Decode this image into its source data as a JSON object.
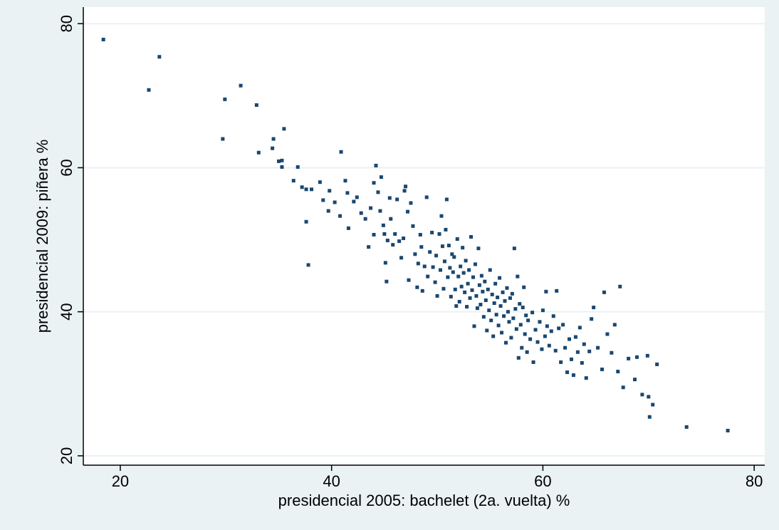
{
  "chart_data": {
    "type": "scatter",
    "title": "",
    "xlabel": "presidencial 2005: bachelet (2a. vuelta) %",
    "ylabel": "presidencial 2009: piñera %",
    "xlim": [
      16.5,
      81
    ],
    "ylim": [
      18.7,
      82.3
    ],
    "xticks": [
      20,
      40,
      60,
      80
    ],
    "yticks": [
      20,
      40,
      60,
      80
    ],
    "grid": "horizontal",
    "colors": {
      "background": "#eaf2f3",
      "plot_area": "#ffffff",
      "marker": "#1a476f",
      "grid": "#eaf2f3"
    },
    "series": [
      {
        "points": [
          [
            18.4,
            77.8
          ],
          [
            22.7,
            70.8
          ],
          [
            23.7,
            75.4
          ],
          [
            29.7,
            64.0
          ],
          [
            29.9,
            69.5
          ],
          [
            31.4,
            71.4
          ],
          [
            32.9,
            68.7
          ],
          [
            33.1,
            62.1
          ],
          [
            34.4,
            62.7
          ],
          [
            34.5,
            64.0
          ],
          [
            35.0,
            60.9
          ],
          [
            35.3,
            61.0
          ],
          [
            35.3,
            60.1
          ],
          [
            35.5,
            65.4
          ],
          [
            36.4,
            58.2
          ],
          [
            36.8,
            60.1
          ],
          [
            37.2,
            57.3
          ],
          [
            37.6,
            57.0
          ],
          [
            37.6,
            52.5
          ],
          [
            37.8,
            46.5
          ],
          [
            38.1,
            57.0
          ],
          [
            38.9,
            58.0
          ],
          [
            39.2,
            55.5
          ],
          [
            39.7,
            54.0
          ],
          [
            39.8,
            56.8
          ],
          [
            40.3,
            55.2
          ],
          [
            40.8,
            53.3
          ],
          [
            40.9,
            62.2
          ],
          [
            41.3,
            58.2
          ],
          [
            41.5,
            56.5
          ],
          [
            41.6,
            51.6
          ],
          [
            42.1,
            55.3
          ],
          [
            42.4,
            55.9
          ],
          [
            42.8,
            53.7
          ],
          [
            43.2,
            52.9
          ],
          [
            43.5,
            49.0
          ],
          [
            43.7,
            54.4
          ],
          [
            44.0,
            50.7
          ],
          [
            44.0,
            57.9
          ],
          [
            44.2,
            60.3
          ],
          [
            44.4,
            56.6
          ],
          [
            44.6,
            54.0
          ],
          [
            44.7,
            58.7
          ],
          [
            44.9,
            52.0
          ],
          [
            45.0,
            50.8
          ],
          [
            45.1,
            46.8
          ],
          [
            45.2,
            44.2
          ],
          [
            45.3,
            49.9
          ],
          [
            45.5,
            55.8
          ],
          [
            45.6,
            52.9
          ],
          [
            45.8,
            49.3
          ],
          [
            46.0,
            50.8
          ],
          [
            46.2,
            55.6
          ],
          [
            46.4,
            49.8
          ],
          [
            46.6,
            47.5
          ],
          [
            46.8,
            50.2
          ],
          [
            46.9,
            56.8
          ],
          [
            47.0,
            57.4
          ],
          [
            47.2,
            53.9
          ],
          [
            47.3,
            44.4
          ],
          [
            47.5,
            55.1
          ],
          [
            47.7,
            51.9
          ],
          [
            47.9,
            48.0
          ],
          [
            48.1,
            43.4
          ],
          [
            48.2,
            46.7
          ],
          [
            48.4,
            50.7
          ],
          [
            48.5,
            49.0
          ],
          [
            48.6,
            42.9
          ],
          [
            48.8,
            46.3
          ],
          [
            49.0,
            55.9
          ],
          [
            49.1,
            44.9
          ],
          [
            49.3,
            48.3
          ],
          [
            49.5,
            51.0
          ],
          [
            49.6,
            46.2
          ],
          [
            49.8,
            44.1
          ],
          [
            49.9,
            47.8
          ],
          [
            50.0,
            42.2
          ],
          [
            50.2,
            50.8
          ],
          [
            50.3,
            45.8
          ],
          [
            50.4,
            53.3
          ],
          [
            50.5,
            49.1
          ],
          [
            50.6,
            43.2
          ],
          [
            50.7,
            47.0
          ],
          [
            50.8,
            51.4
          ],
          [
            50.9,
            55.6
          ],
          [
            51.0,
            44.8
          ],
          [
            51.1,
            49.2
          ],
          [
            51.2,
            46.1
          ],
          [
            51.3,
            42.1
          ],
          [
            51.4,
            48.0
          ],
          [
            51.5,
            45.5
          ],
          [
            51.6,
            47.6
          ],
          [
            51.7,
            43.1
          ],
          [
            51.8,
            40.8
          ],
          [
            51.9,
            50.1
          ],
          [
            52.0,
            44.9
          ],
          [
            52.1,
            41.4
          ],
          [
            52.2,
            46.3
          ],
          [
            52.3,
            43.5
          ],
          [
            52.4,
            48.9
          ],
          [
            52.5,
            45.4
          ],
          [
            52.6,
            42.7
          ],
          [
            52.7,
            47.1
          ],
          [
            52.8,
            40.7
          ],
          [
            52.9,
            43.9
          ],
          [
            53.0,
            45.8
          ],
          [
            53.1,
            41.9
          ],
          [
            53.2,
            50.4
          ],
          [
            53.3,
            43.0
          ],
          [
            53.4,
            44.8
          ],
          [
            53.5,
            38.0
          ],
          [
            53.6,
            46.6
          ],
          [
            53.7,
            42.2
          ],
          [
            53.8,
            40.5
          ],
          [
            53.9,
            48.8
          ],
          [
            54.0,
            43.7
          ],
          [
            54.1,
            41.0
          ],
          [
            54.2,
            45.0
          ],
          [
            54.3,
            42.8
          ],
          [
            54.4,
            39.3
          ],
          [
            54.5,
            44.2
          ],
          [
            54.6,
            41.6
          ],
          [
            54.7,
            37.4
          ],
          [
            54.8,
            43.1
          ],
          [
            54.9,
            40.2
          ],
          [
            55.0,
            45.8
          ],
          [
            55.1,
            38.8
          ],
          [
            55.2,
            42.4
          ],
          [
            55.3,
            36.6
          ],
          [
            55.4,
            41.2
          ],
          [
            55.5,
            43.9
          ],
          [
            55.6,
            39.6
          ],
          [
            55.7,
            42.0
          ],
          [
            55.8,
            38.1
          ],
          [
            55.9,
            44.7
          ],
          [
            56.0,
            40.8
          ],
          [
            56.1,
            37.1
          ],
          [
            56.2,
            42.7
          ],
          [
            56.3,
            39.4
          ],
          [
            56.4,
            41.5
          ],
          [
            56.5,
            35.7
          ],
          [
            56.6,
            43.3
          ],
          [
            56.7,
            40.0
          ],
          [
            56.8,
            38.6
          ],
          [
            56.9,
            41.9
          ],
          [
            57.0,
            36.4
          ],
          [
            57.1,
            42.5
          ],
          [
            57.2,
            39.1
          ],
          [
            57.3,
            48.8
          ],
          [
            57.4,
            40.4
          ],
          [
            57.5,
            37.6
          ],
          [
            57.6,
            44.9
          ],
          [
            57.7,
            33.6
          ],
          [
            57.8,
            41.1
          ],
          [
            57.9,
            38.2
          ],
          [
            58.0,
            35.0
          ],
          [
            58.1,
            40.6
          ],
          [
            58.2,
            43.4
          ],
          [
            58.3,
            36.9
          ],
          [
            58.4,
            39.5
          ],
          [
            58.5,
            34.4
          ],
          [
            58.6,
            38.8
          ],
          [
            58.8,
            36.2
          ],
          [
            59.0,
            39.9
          ],
          [
            59.1,
            33.0
          ],
          [
            59.3,
            37.5
          ],
          [
            59.5,
            35.8
          ],
          [
            59.7,
            38.6
          ],
          [
            59.9,
            34.8
          ],
          [
            60.0,
            40.2
          ],
          [
            60.2,
            36.6
          ],
          [
            60.3,
            42.8
          ],
          [
            60.4,
            38.0
          ],
          [
            60.6,
            35.3
          ],
          [
            60.8,
            37.3
          ],
          [
            61.0,
            39.4
          ],
          [
            61.2,
            34.6
          ],
          [
            61.3,
            42.9
          ],
          [
            61.5,
            37.7
          ],
          [
            61.7,
            33.0
          ],
          [
            61.9,
            38.2
          ],
          [
            62.1,
            35.0
          ],
          [
            62.3,
            31.6
          ],
          [
            62.5,
            36.2
          ],
          [
            62.7,
            33.4
          ],
          [
            62.9,
            31.2
          ],
          [
            63.1,
            36.5
          ],
          [
            63.3,
            34.4
          ],
          [
            63.5,
            37.8
          ],
          [
            63.7,
            32.9
          ],
          [
            63.9,
            35.5
          ],
          [
            64.1,
            30.8
          ],
          [
            64.4,
            34.5
          ],
          [
            64.6,
            39.0
          ],
          [
            64.8,
            40.6
          ],
          [
            65.2,
            35.0
          ],
          [
            65.6,
            32.0
          ],
          [
            65.8,
            42.7
          ],
          [
            66.1,
            36.9
          ],
          [
            66.5,
            34.3
          ],
          [
            66.8,
            38.2
          ],
          [
            67.1,
            31.7
          ],
          [
            67.3,
            43.5
          ],
          [
            67.6,
            29.5
          ],
          [
            68.1,
            33.5
          ],
          [
            68.7,
            30.6
          ],
          [
            68.9,
            33.7
          ],
          [
            69.4,
            28.5
          ],
          [
            69.9,
            33.9
          ],
          [
            70.0,
            28.2
          ],
          [
            70.1,
            25.4
          ],
          [
            70.4,
            27.1
          ],
          [
            70.8,
            32.7
          ],
          [
            73.6,
            24.0
          ],
          [
            77.5,
            23.5
          ]
        ]
      }
    ]
  }
}
